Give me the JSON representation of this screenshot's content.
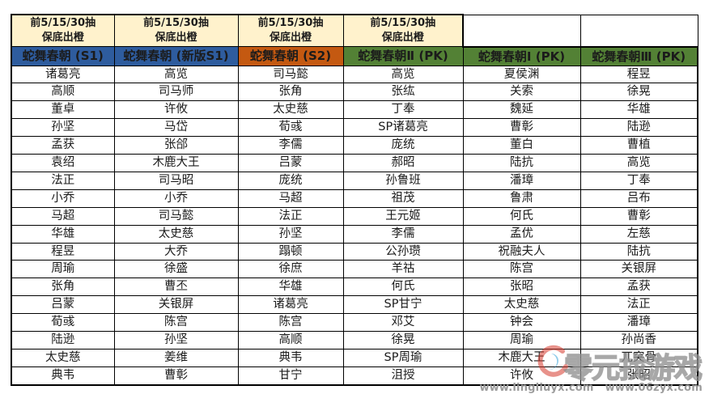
{
  "colors": {
    "draw_header_bg": "#FFF2CC",
    "blue": "#2E5C9E",
    "orange": "#C45911",
    "green": "#538135",
    "border": "#000000",
    "header_text": "#FFFFFF",
    "watermark_gray": "#9B9B9B"
  },
  "table": {
    "draw_header": {
      "line1": "前5/15/30抽",
      "line2": "保底出橙"
    },
    "columns": [
      {
        "id": "s1",
        "label": "蛇舞春朝 (S1)",
        "header_color": "#2E5C9E",
        "has_draw_header": true
      },
      {
        "id": "new-s1",
        "label": "蛇舞春朝 (新版S1)",
        "header_color": "#2E5C9E",
        "has_draw_header": true
      },
      {
        "id": "s2",
        "label": "蛇舞春朝 (S2)",
        "header_color": "#C45911",
        "has_draw_header": true
      },
      {
        "id": "pk2",
        "label": "蛇舞春朝Ⅱ (PK)",
        "header_color": "#538135",
        "has_draw_header": true
      },
      {
        "id": "pk1",
        "label": "蛇舞春朝Ⅰ (PK)",
        "header_color": "#538135",
        "has_draw_header": false
      },
      {
        "id": "pk3",
        "label": "蛇舞春朝Ⅲ (PK)",
        "header_color": "#538135",
        "has_draw_header": false
      }
    ],
    "rows": [
      [
        "诸葛亮",
        "高览",
        "司马懿",
        "高览",
        "夏侯渊",
        "程昱"
      ],
      [
        "高顺",
        "司马师",
        "张角",
        "张纮",
        "关索",
        "徐晃"
      ],
      [
        "董卓",
        "许攸",
        "太史慈",
        "丁奉",
        "魏延",
        "华雄"
      ],
      [
        "孙坚",
        "马岱",
        "荀彧",
        "SP诸葛亮",
        "曹彰",
        "陆逊"
      ],
      [
        "孟获",
        "张郃",
        "李儒",
        "庞统",
        "董白",
        "曹植"
      ],
      [
        "袁绍",
        "木鹿大王",
        "吕蒙",
        "郝昭",
        "陆抗",
        "高览"
      ],
      [
        "法正",
        "司马昭",
        "庞统",
        "孙鲁班",
        "潘璋",
        "丁奉"
      ],
      [
        "小乔",
        "小乔",
        "马超",
        "祖茂",
        "鲁肃",
        "吕布"
      ],
      [
        "马超",
        "司马懿",
        "法正",
        "王元姬",
        "何氏",
        "曹彰"
      ],
      [
        "华雄",
        "太史慈",
        "孙坚",
        "李儒",
        "孟优",
        "左慈"
      ],
      [
        "程昱",
        "大乔",
        "蹋顿",
        "公孙瓒",
        "祝融夫人",
        "陆抗"
      ],
      [
        "周瑜",
        "徐盛",
        "徐庶",
        "羊祜",
        "陈宫",
        "关银屏"
      ],
      [
        "张角",
        "曹丕",
        "华雄",
        "何氏",
        "张昭",
        "孟获"
      ],
      [
        "吕蒙",
        "关银屏",
        "诸葛亮",
        "SP甘宁",
        "太史慈",
        "法正"
      ],
      [
        "荀彧",
        "陈宫",
        "陈宫",
        "邓艾",
        "钟会",
        "潘璋"
      ],
      [
        "陆逊",
        "孙坚",
        "高顺",
        "徐晃",
        "周瑜",
        "孙尚香"
      ],
      [
        "太史慈",
        "姜维",
        "典韦",
        "SP周瑜",
        "木鹿大王",
        "兀突骨"
      ],
      [
        "典韦",
        "曹彰",
        "甘宁",
        "沮授",
        "许攸",
        "张昭"
      ]
    ]
  },
  "watermark": {
    "brand_text": "零元找游戏",
    "url_left": "www.lingliuyx.com",
    "url_right": "www.06zyx.com"
  }
}
